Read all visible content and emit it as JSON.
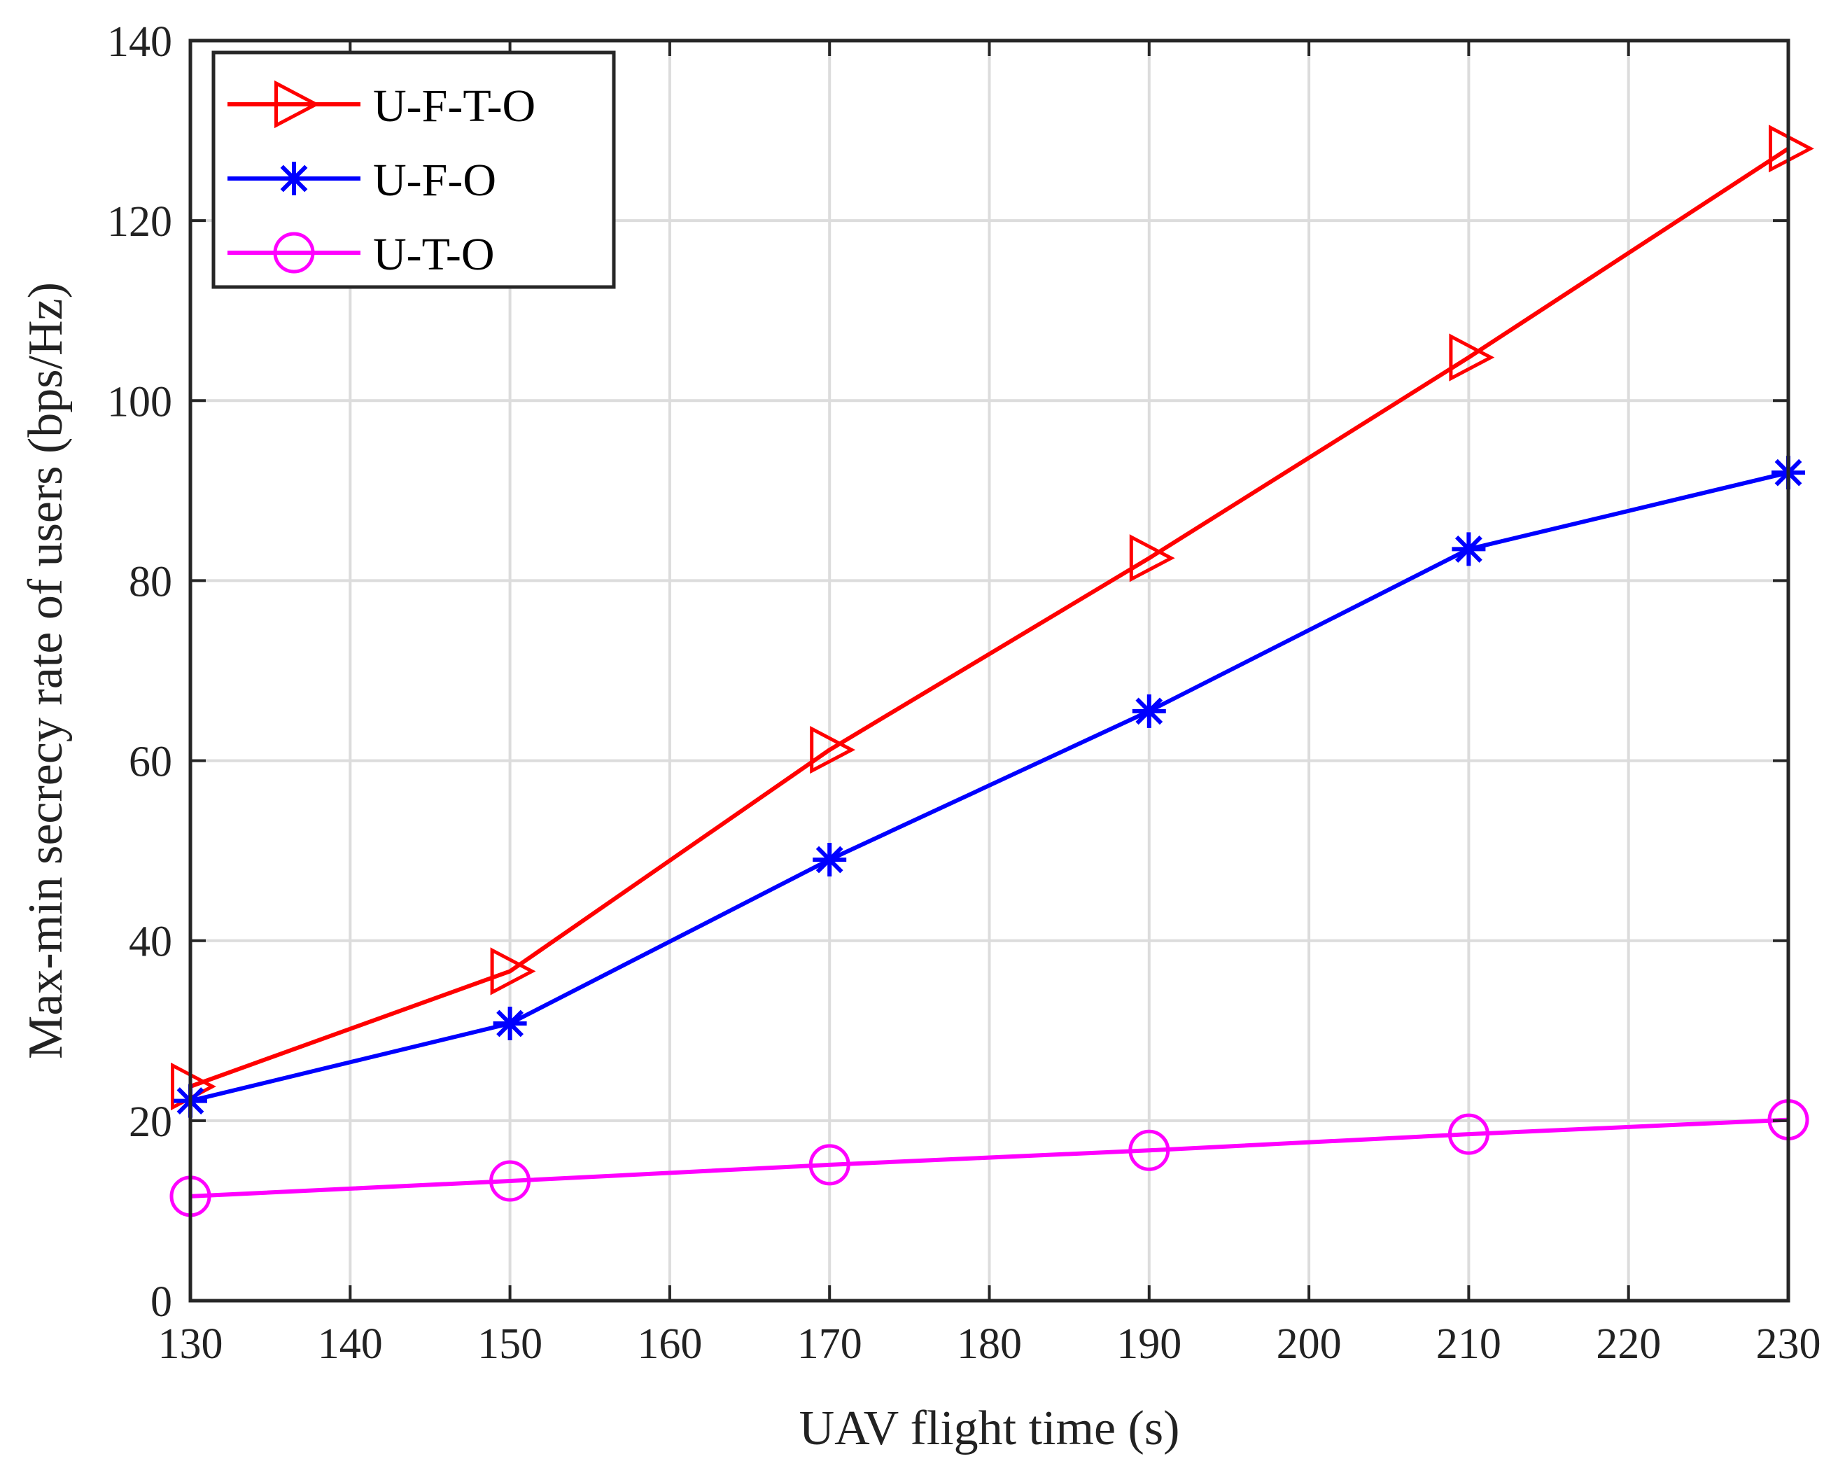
{
  "chart_data": {
    "type": "line",
    "title": "",
    "xlabel": "UAV flight time (s)",
    "ylabel": "Max-min secrecy rate of users (bps/Hz)",
    "xlim": [
      130,
      230
    ],
    "ylim": [
      0,
      140
    ],
    "xticks": [
      "130",
      "140",
      "150",
      "160",
      "170",
      "180",
      "190",
      "200",
      "210",
      "220",
      "230"
    ],
    "yticks": [
      "0",
      "20",
      "40",
      "60",
      "80",
      "100",
      "120",
      "140"
    ],
    "grid": true,
    "legend_position": "top-left",
    "x": [
      130,
      150,
      170,
      190,
      210,
      230
    ],
    "series": [
      {
        "name": "U-F-T-O",
        "color": "#ff0000",
        "marker": "triangle-right",
        "values": [
          23.8,
          36.6,
          61.2,
          82.5,
          104.8,
          128.0
        ]
      },
      {
        "name": "U-F-O",
        "color": "#0000ff",
        "marker": "asterisk",
        "values": [
          22.2,
          30.8,
          49.0,
          65.5,
          83.5,
          92.0
        ]
      },
      {
        "name": "U-T-O",
        "color": "#ff00ff",
        "marker": "circle",
        "values": [
          11.6,
          13.3,
          15.1,
          16.7,
          18.5,
          20.1
        ]
      }
    ]
  }
}
